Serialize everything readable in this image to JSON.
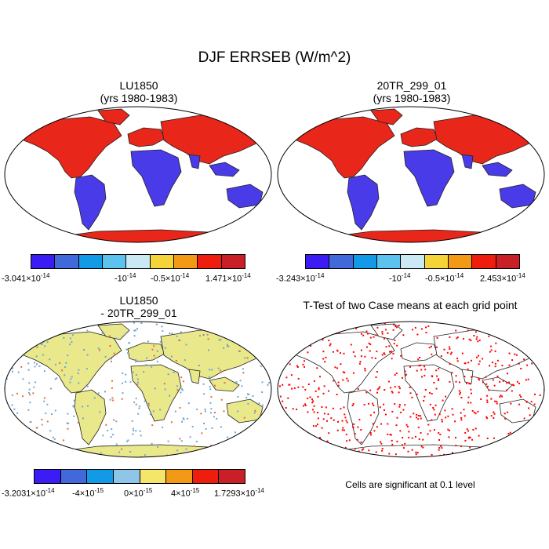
{
  "figure": {
    "title": "DJF ERRSEB (W/m^2)"
  },
  "panels": [
    {
      "title_line1": "LU1850",
      "title_line2": "(yrs 1980-1983)",
      "colorbar": {
        "colors": [
          "#3b1cf5",
          "#4169d9",
          "#139ae6",
          "#5ec2ee",
          "#cbe9f5",
          "#f5d43a",
          "#f29a15",
          "#ef1d0e",
          "#c91f26"
        ],
        "min_label": "-3.041×10",
        "min_exp": "-14",
        "mid1_label": "-10",
        "mid1_exp": "-14",
        "mid2_label": "-0.5×10",
        "mid2_exp": "-14",
        "max_label": "1.471×10",
        "max_exp": "-14"
      }
    },
    {
      "title_line1": "20TR_299_01",
      "title_line2": "(yrs 1980-1983)",
      "colorbar": {
        "colors": [
          "#3b1cf5",
          "#4169d9",
          "#139ae6",
          "#5ec2ee",
          "#cbe9f5",
          "#f5d43a",
          "#f29a15",
          "#ef1d0e",
          "#c91f26"
        ],
        "min_label": "-3.243×10",
        "min_exp": "-14",
        "mid1_label": "-10",
        "mid1_exp": "-14",
        "mid2_label": "-0.5×10",
        "mid2_exp": "-14",
        "max_label": "2.453×10",
        "max_exp": "-14"
      }
    },
    {
      "title_line1": "LU1850",
      "title_line2": "- 20TR_299_01",
      "colorbar": {
        "colors": [
          "#3b1cf5",
          "#4169d9",
          "#139ae6",
          "#8fc6e8",
          "#f5e66a",
          "#f29a15",
          "#ef1d0e",
          "#c91f26"
        ],
        "min_label": "-3.2031×10",
        "min_exp": "-14",
        "mid1_label": "-4×10",
        "mid1_exp": "-15",
        "mid2_label": "0×10",
        "mid2_exp": "-15",
        "mid3_label": "4×10",
        "mid3_exp": "-15",
        "max_label": "1.7293×10",
        "max_exp": "-14"
      }
    },
    {
      "title_line1": "T-Test of two Case means at each grid point",
      "note": "Cells are significant at 0.1 level"
    }
  ],
  "colors": {
    "land_warm": "#e8261a",
    "land_cool": "#4a3be8",
    "diff_base": "#e9e88a",
    "signif": "#ff0000"
  }
}
